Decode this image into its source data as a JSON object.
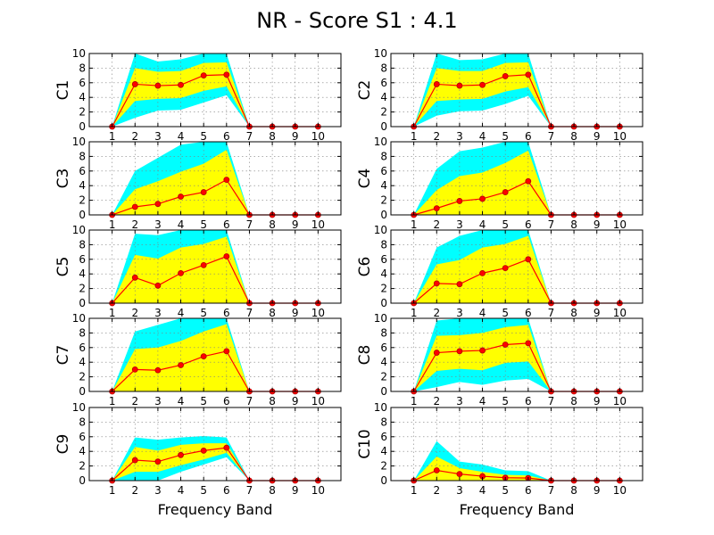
{
  "figure": {
    "title": "NR - Score S1 : 4.1"
  },
  "chart_data": [
    {
      "type": "area",
      "ylabel": "C1",
      "xlabel": "",
      "x": [
        1,
        2,
        3,
        4,
        5,
        6,
        7,
        8,
        9,
        10
      ],
      "xticks": [
        "1",
        "2",
        "3",
        "4",
        "5",
        "6",
        "7",
        "8",
        "9",
        "10"
      ],
      "yticks": [
        "0",
        "2",
        "4",
        "6",
        "8",
        "10"
      ],
      "xlim": [
        0,
        11
      ],
      "ylim": [
        0,
        10
      ],
      "grid": true,
      "outer_band": {
        "lower": [
          0,
          1.2,
          2.2,
          2.3,
          3.3,
          4.3,
          0,
          0,
          0,
          0
        ],
        "upper": [
          0,
          10,
          8.9,
          9.2,
          10,
          10,
          0,
          0,
          0,
          0
        ]
      },
      "inner_band": {
        "lower": [
          0,
          3.5,
          3.8,
          3.9,
          4.9,
          5.5,
          0,
          0,
          0,
          0
        ],
        "upper": [
          0,
          8,
          7.5,
          7.6,
          8.7,
          8.8,
          0,
          0,
          0,
          0
        ]
      },
      "series": [
        {
          "values": [
            0,
            5.8,
            5.6,
            5.7,
            7.0,
            7.1,
            0,
            0,
            0,
            0
          ]
        }
      ]
    },
    {
      "type": "area",
      "ylabel": "C2",
      "xlabel": "",
      "x": [
        1,
        2,
        3,
        4,
        5,
        6,
        7,
        8,
        9,
        10
      ],
      "xticks": [
        "1",
        "2",
        "3",
        "4",
        "5",
        "6",
        "7",
        "8",
        "9",
        "10"
      ],
      "yticks": [
        "0",
        "2",
        "4",
        "6",
        "8",
        "10"
      ],
      "xlim": [
        0,
        11
      ],
      "ylim": [
        0,
        10
      ],
      "grid": true,
      "outer_band": {
        "lower": [
          0,
          1.5,
          2.1,
          2.2,
          3.1,
          4.2,
          0,
          0,
          0,
          0
        ],
        "upper": [
          0,
          10,
          9.1,
          9.2,
          10,
          10,
          0,
          0,
          0,
          0
        ]
      },
      "inner_band": {
        "lower": [
          0,
          3.5,
          3.7,
          3.8,
          4.8,
          5.4,
          0,
          0,
          0,
          0
        ],
        "upper": [
          0,
          8,
          7.6,
          7.6,
          8.7,
          8.8,
          0,
          0,
          0,
          0
        ]
      },
      "series": [
        {
          "values": [
            0,
            5.8,
            5.6,
            5.7,
            6.9,
            7.1,
            0,
            0,
            0,
            0
          ]
        }
      ]
    },
    {
      "type": "area",
      "ylabel": "C3",
      "xlabel": "",
      "x": [
        1,
        2,
        3,
        4,
        5,
        6,
        7,
        8,
        9,
        10
      ],
      "xticks": [
        "1",
        "2",
        "3",
        "4",
        "5",
        "6",
        "7",
        "8",
        "9",
        "10"
      ],
      "yticks": [
        "0",
        "2",
        "4",
        "6",
        "8",
        "10"
      ],
      "xlim": [
        0,
        11
      ],
      "ylim": [
        0,
        10
      ],
      "grid": true,
      "outer_band": {
        "lower": [
          0,
          0,
          0,
          0,
          0,
          0.5,
          0,
          0,
          0,
          0
        ],
        "upper": [
          0,
          6,
          7.8,
          9.6,
          10,
          10,
          0,
          0,
          0,
          0
        ]
      },
      "inner_band": {
        "lower": [
          0,
          0,
          0,
          0,
          0,
          0,
          0,
          0,
          0,
          0
        ],
        "upper": [
          0,
          3.5,
          4.6,
          5.9,
          7.0,
          8.9,
          0,
          0,
          0,
          0
        ]
      },
      "series": [
        {
          "values": [
            0,
            1.1,
            1.5,
            2.5,
            3.1,
            4.8,
            0,
            0,
            0,
            0
          ]
        }
      ]
    },
    {
      "type": "area",
      "ylabel": "C4",
      "xlabel": "",
      "x": [
        1,
        2,
        3,
        4,
        5,
        6,
        7,
        8,
        9,
        10
      ],
      "xticks": [
        "1",
        "2",
        "3",
        "4",
        "5",
        "6",
        "7",
        "8",
        "9",
        "10"
      ],
      "yticks": [
        "0",
        "2",
        "4",
        "6",
        "8",
        "10"
      ],
      "xlim": [
        0,
        11
      ],
      "ylim": [
        0,
        10
      ],
      "grid": true,
      "outer_band": {
        "lower": [
          0,
          0,
          0,
          0,
          0,
          0.3,
          0,
          0,
          0,
          0
        ],
        "upper": [
          0,
          6.3,
          8.7,
          9.2,
          10,
          10,
          0,
          0,
          0,
          0
        ]
      },
      "inner_band": {
        "lower": [
          0,
          0,
          0,
          0,
          0,
          0,
          0,
          0,
          0,
          0
        ],
        "upper": [
          0,
          3.4,
          5.3,
          5.8,
          7.1,
          8.8,
          0,
          0,
          0,
          0
        ]
      },
      "series": [
        {
          "values": [
            0,
            0.9,
            1.9,
            2.2,
            3.1,
            4.6,
            0,
            0,
            0,
            0
          ]
        }
      ]
    },
    {
      "type": "area",
      "ylabel": "C5",
      "xlabel": "",
      "x": [
        1,
        2,
        3,
        4,
        5,
        6,
        7,
        8,
        9,
        10
      ],
      "xticks": [
        "1",
        "2",
        "3",
        "4",
        "5",
        "6",
        "7",
        "8",
        "9",
        "10"
      ],
      "yticks": [
        "0",
        "2",
        "4",
        "6",
        "8",
        "10"
      ],
      "xlim": [
        0,
        11
      ],
      "ylim": [
        0,
        10
      ],
      "grid": true,
      "outer_band": {
        "lower": [
          0,
          0.6,
          0,
          0.5,
          1.8,
          3.0,
          0,
          0,
          0,
          0
        ],
        "upper": [
          0,
          9.5,
          9.3,
          10,
          10,
          10,
          0,
          0,
          0,
          0
        ]
      },
      "inner_band": {
        "lower": [
          0,
          0,
          0,
          0,
          0,
          0,
          0,
          0,
          0,
          0
        ],
        "upper": [
          0,
          6.6,
          6.1,
          7.6,
          8.1,
          9.1,
          0,
          0,
          0,
          0
        ]
      },
      "series": [
        {
          "values": [
            0,
            3.5,
            2.4,
            4.1,
            5.2,
            6.4,
            0,
            0,
            0,
            0
          ]
        }
      ]
    },
    {
      "type": "area",
      "ylabel": "C6",
      "xlabel": "",
      "x": [
        1,
        2,
        3,
        4,
        5,
        6,
        7,
        8,
        9,
        10
      ],
      "xticks": [
        "1",
        "2",
        "3",
        "4",
        "5",
        "6",
        "7",
        "8",
        "9",
        "10"
      ],
      "yticks": [
        "0",
        "2",
        "4",
        "6",
        "8",
        "10"
      ],
      "xlim": [
        0,
        11
      ],
      "ylim": [
        0,
        10
      ],
      "grid": true,
      "outer_band": {
        "lower": [
          0,
          0.3,
          0,
          0.6,
          1.5,
          2.5,
          0,
          0,
          0,
          0
        ],
        "upper": [
          0,
          7.6,
          9.2,
          10,
          10,
          10,
          0,
          0,
          0,
          0
        ]
      },
      "inner_band": {
        "lower": [
          0,
          0,
          0,
          0,
          0,
          0,
          0,
          0,
          0,
          0
        ],
        "upper": [
          0,
          5.3,
          5.9,
          7.6,
          8.1,
          9.2,
          0,
          0,
          0,
          0
        ]
      },
      "series": [
        {
          "values": [
            0,
            2.7,
            2.6,
            4.1,
            4.8,
            6.0,
            0,
            0,
            0,
            0
          ]
        }
      ]
    },
    {
      "type": "area",
      "ylabel": "C7",
      "xlabel": "",
      "x": [
        1,
        2,
        3,
        4,
        5,
        6,
        7,
        8,
        9,
        10
      ],
      "xticks": [
        "1",
        "2",
        "3",
        "4",
        "5",
        "6",
        "7",
        "8",
        "9",
        "10"
      ],
      "yticks": [
        "0",
        "2",
        "4",
        "6",
        "8",
        "10"
      ],
      "xlim": [
        0,
        11
      ],
      "ylim": [
        0,
        10
      ],
      "grid": true,
      "outer_band": {
        "lower": [
          0,
          0.4,
          0,
          0.3,
          1.4,
          1.9,
          0,
          0,
          0,
          0
        ],
        "upper": [
          0,
          8.2,
          9.1,
          10,
          10,
          10,
          0,
          0,
          0,
          0
        ]
      },
      "inner_band": {
        "lower": [
          0,
          0,
          0,
          0,
          0,
          0,
          0,
          0,
          0,
          0
        ],
        "upper": [
          0,
          5.8,
          6.0,
          6.9,
          8.2,
          9.2,
          0,
          0,
          0,
          0
        ]
      },
      "series": [
        {
          "values": [
            0,
            3.0,
            2.9,
            3.6,
            4.8,
            5.5,
            0,
            0,
            0,
            0
          ]
        }
      ]
    },
    {
      "type": "area",
      "ylabel": "C8",
      "xlabel": "",
      "x": [
        1,
        2,
        3,
        4,
        5,
        6,
        7,
        8,
        9,
        10
      ],
      "xticks": [
        "1",
        "2",
        "3",
        "4",
        "5",
        "6",
        "7",
        "8",
        "9",
        "10"
      ],
      "yticks": [
        "0",
        "2",
        "4",
        "6",
        "8",
        "10"
      ],
      "xlim": [
        0,
        11
      ],
      "ylim": [
        0,
        10
      ],
      "grid": true,
      "outer_band": {
        "lower": [
          0,
          0.6,
          1.3,
          0.9,
          1.5,
          1.7,
          0,
          0,
          0,
          0
        ],
        "upper": [
          0,
          9.7,
          10,
          10,
          10,
          10,
          0,
          0,
          0,
          0
        ]
      },
      "inner_band": {
        "lower": [
          0,
          2.8,
          3.1,
          2.9,
          3.9,
          4.1,
          0,
          0,
          0,
          0
        ],
        "upper": [
          0,
          7.6,
          7.7,
          8.0,
          8.8,
          9.1,
          0,
          0,
          0,
          0
        ]
      },
      "series": [
        {
          "values": [
            0,
            5.3,
            5.5,
            5.6,
            6.4,
            6.6,
            0,
            0,
            0,
            0
          ]
        }
      ]
    },
    {
      "type": "area",
      "ylabel": "C9",
      "xlabel": "Frequency Band",
      "x": [
        1,
        2,
        3,
        4,
        5,
        6,
        7,
        8,
        9,
        10
      ],
      "xticks": [
        "1",
        "2",
        "3",
        "4",
        "5",
        "6",
        "7",
        "8",
        "9",
        "10"
      ],
      "yticks": [
        "0",
        "2",
        "4",
        "6",
        "8",
        "10"
      ],
      "xlim": [
        0,
        11
      ],
      "ylim": [
        0,
        10
      ],
      "grid": true,
      "outer_band": {
        "lower": [
          0,
          0,
          0,
          1.2,
          2.2,
          3.2,
          0,
          0,
          0,
          0
        ],
        "upper": [
          0,
          5.9,
          5.6,
          5.9,
          6.1,
          5.9,
          0,
          0,
          0,
          0
        ]
      },
      "inner_band": {
        "lower": [
          0,
          1.2,
          1.2,
          2.1,
          2.9,
          3.8,
          0,
          0,
          0,
          0
        ],
        "upper": [
          0,
          4.6,
          4.1,
          4.9,
          5.1,
          5.1,
          0,
          0,
          0,
          0
        ]
      },
      "series": [
        {
          "values": [
            0,
            2.8,
            2.6,
            3.5,
            4.1,
            4.5,
            0,
            0,
            0,
            0
          ]
        }
      ]
    },
    {
      "type": "area",
      "ylabel": "C10",
      "xlabel": "Frequency Band",
      "x": [
        1,
        2,
        3,
        4,
        5,
        6,
        7,
        8,
        9,
        10
      ],
      "xticks": [
        "1",
        "2",
        "3",
        "4",
        "5",
        "6",
        "7",
        "8",
        "9",
        "10"
      ],
      "yticks": [
        "0",
        "2",
        "4",
        "6",
        "8",
        "10"
      ],
      "xlim": [
        0,
        11
      ],
      "ylim": [
        0,
        10
      ],
      "grid": true,
      "outer_band": {
        "lower": [
          0,
          0,
          0,
          0,
          0,
          0,
          0,
          0,
          0,
          0
        ],
        "upper": [
          0,
          5.4,
          2.6,
          2.2,
          1.4,
          1.3,
          0,
          0,
          0,
          0
        ]
      },
      "inner_band": {
        "lower": [
          0,
          0,
          0,
          0,
          0,
          0,
          0,
          0,
          0,
          0
        ],
        "upper": [
          0,
          3.3,
          1.7,
          1.2,
          0.8,
          0.7,
          0,
          0,
          0,
          0
        ]
      },
      "series": [
        {
          "values": [
            0,
            1.4,
            0.9,
            0.6,
            0.4,
            0.35,
            0,
            0,
            0,
            0
          ]
        }
      ]
    }
  ],
  "colors": {
    "outer_band": "#00ffff",
    "inner_band": "#ffff00",
    "line": "#ff0000",
    "marker": "#b30000",
    "grid": "#808080",
    "axes": "#000000"
  }
}
